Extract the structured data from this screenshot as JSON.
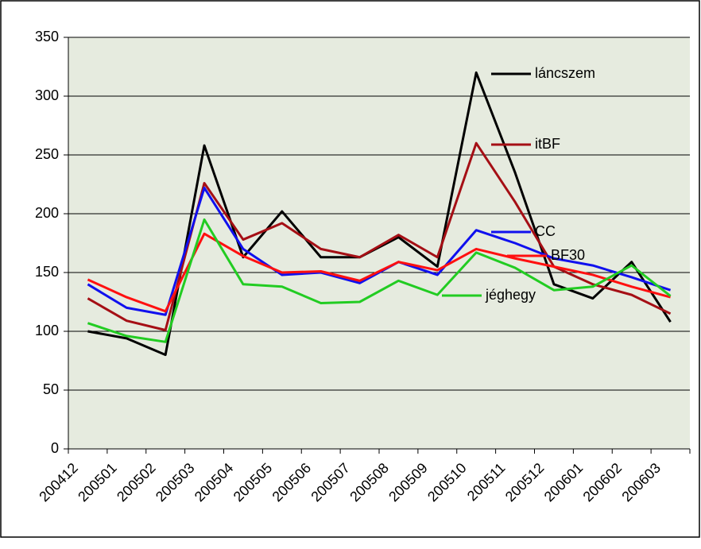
{
  "chart_data": {
    "type": "line",
    "categories": [
      "200412",
      "200501",
      "200502",
      "200503",
      "200504",
      "200505",
      "200506",
      "200507",
      "200508",
      "200509",
      "200510",
      "200511",
      "200512",
      "200601",
      "200602",
      "200603"
    ],
    "series": [
      {
        "name": "láncszem",
        "color": "#000000",
        "values": [
          100,
          94,
          80,
          258,
          163,
          202,
          163,
          163,
          180,
          155,
          320,
          235,
          140,
          128,
          159,
          108
        ]
      },
      {
        "name": "itBF",
        "color": "#a50f15",
        "values": [
          128,
          109,
          101,
          226,
          178,
          192,
          170,
          163,
          182,
          163,
          260,
          210,
          155,
          140,
          131,
          115
        ]
      },
      {
        "name": "CC",
        "color": "#1010ee",
        "values": [
          140,
          120,
          114,
          222,
          170,
          148,
          150,
          141,
          159,
          148,
          186,
          175,
          162,
          156,
          146,
          135
        ]
      },
      {
        "name": "BF30",
        "color": "#ff1010",
        "values": [
          144,
          129,
          117,
          183,
          164,
          150,
          151,
          143,
          159,
          152,
          170,
          162,
          155,
          148,
          138,
          129
        ]
      },
      {
        "name": "jéghegy",
        "color": "#22cc22",
        "values": [
          107,
          96,
          91,
          195,
          140,
          138,
          124,
          125,
          143,
          131,
          167,
          154,
          135,
          138,
          156,
          130
        ]
      }
    ],
    "ylim": [
      0,
      350
    ],
    "yticks": [
      0,
      50,
      100,
      150,
      200,
      250,
      300,
      350
    ],
    "grid": true
  }
}
